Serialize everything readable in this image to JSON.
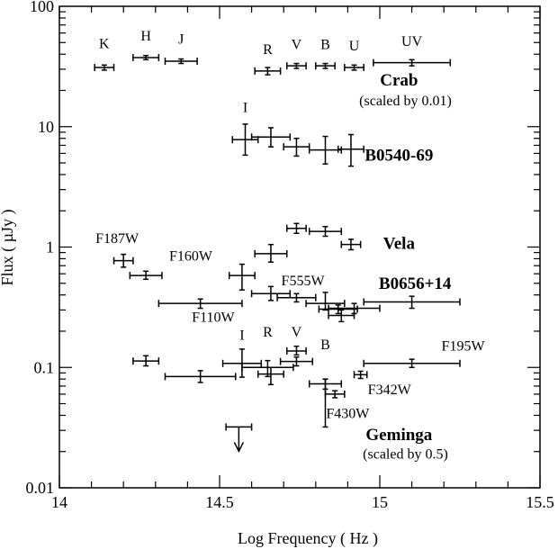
{
  "chart_data": {
    "type": "scatter",
    "xlabel": "Log Frequency ( Hz )",
    "ylabel": "Flux ( µJy )",
    "xlim": [
      14,
      15.5
    ],
    "ylim": [
      0.01,
      100
    ],
    "y_scale": "log",
    "x_ticks": [
      {
        "value": 14,
        "label": "14"
      },
      {
        "value": 14.5,
        "label": "14.5"
      },
      {
        "value": 15,
        "label": "15"
      },
      {
        "value": 15.5,
        "label": "15.5"
      }
    ],
    "y_ticks": [
      {
        "value": 0.01,
        "label": "0.01"
      },
      {
        "value": 0.1,
        "label": "0.1"
      },
      {
        "value": 1,
        "label": "1"
      },
      {
        "value": 10,
        "label": "10"
      },
      {
        "value": 100,
        "label": "100"
      }
    ],
    "series": [
      {
        "name": "Crab",
        "points": [
          {
            "x": 14.14,
            "y": 31,
            "xerr": 0.03,
            "ylo": 29.5,
            "yhi": 32.5
          },
          {
            "x": 14.27,
            "y": 37.5,
            "xerr": 0.04,
            "ylo": 36,
            "yhi": 39
          },
          {
            "x": 14.38,
            "y": 35,
            "xerr": 0.05,
            "ylo": 33.5,
            "yhi": 36.5
          },
          {
            "x": 14.65,
            "y": 29,
            "xerr": 0.04,
            "ylo": 27,
            "yhi": 31
          },
          {
            "x": 14.74,
            "y": 32,
            "xerr": 0.03,
            "ylo": 30.5,
            "yhi": 33.5
          },
          {
            "x": 14.83,
            "y": 32,
            "xerr": 0.03,
            "ylo": 30.5,
            "yhi": 33.5
          },
          {
            "x": 14.92,
            "y": 31,
            "xerr": 0.03,
            "ylo": 29.5,
            "yhi": 32.5
          },
          {
            "x": 15.1,
            "y": 34,
            "xerr": 0.12,
            "ylo": 32,
            "yhi": 36
          }
        ]
      },
      {
        "name": "B0540-69",
        "points": [
          {
            "x": 14.58,
            "y": 7.8,
            "xerr": 0.04,
            "ylo": 5.8,
            "yhi": 10.5
          },
          {
            "x": 14.66,
            "y": 8.2,
            "xerr": 0.06,
            "ylo": 6.8,
            "yhi": 9.8
          },
          {
            "x": 14.74,
            "y": 6.8,
            "xerr": 0.04,
            "ylo": 5.7,
            "yhi": 8.0
          },
          {
            "x": 14.83,
            "y": 6.4,
            "xerr": 0.05,
            "ylo": 4.9,
            "yhi": 8.3
          },
          {
            "x": 14.91,
            "y": 6.5,
            "xerr": 0.04,
            "ylo": 4.7,
            "yhi": 8.6
          }
        ]
      },
      {
        "name": "Vela",
        "points": [
          {
            "x": 14.2,
            "y": 0.77,
            "xerr": 0.03,
            "ylo": 0.68,
            "yhi": 0.87
          },
          {
            "x": 14.27,
            "y": 0.58,
            "xerr": 0.05,
            "ylo": 0.54,
            "yhi": 0.63
          },
          {
            "x": 14.44,
            "y": 0.34,
            "xerr": 0.13,
            "ylo": 0.31,
            "yhi": 0.37
          },
          {
            "x": 14.57,
            "y": 0.58,
            "xerr": 0.04,
            "ylo": 0.44,
            "yhi": 0.72
          },
          {
            "x": 14.66,
            "y": 0.88,
            "xerr": 0.05,
            "ylo": 0.75,
            "yhi": 1.05
          },
          {
            "x": 14.74,
            "y": 1.43,
            "xerr": 0.03,
            "ylo": 1.3,
            "yhi": 1.57
          },
          {
            "x": 14.83,
            "y": 1.35,
            "xerr": 0.05,
            "ylo": 1.23,
            "yhi": 1.48
          },
          {
            "x": 14.91,
            "y": 1.05,
            "xerr": 0.03,
            "ylo": 0.95,
            "yhi": 1.16
          }
        ]
      },
      {
        "name": "B0656+14",
        "points": [
          {
            "x": 14.66,
            "y": 0.41,
            "xerr": 0.06,
            "ylo": 0.36,
            "yhi": 0.47
          },
          {
            "x": 14.74,
            "y": 0.38,
            "xerr": 0.06,
            "ylo": 0.35,
            "yhi": 0.41
          },
          {
            "x": 14.83,
            "y": 0.34,
            "xerr": 0.06,
            "ylo": 0.3,
            "yhi": 0.42
          },
          {
            "x": 14.88,
            "y": 0.27,
            "xerr": 0.04,
            "ylo": 0.24,
            "yhi": 0.3
          },
          {
            "x": 14.92,
            "y": 0.31,
            "xerr": 0.08,
            "ylo": 0.28,
            "yhi": 0.34
          },
          {
            "x": 14.87,
            "y": 0.305,
            "xerr": 0.06,
            "ylo": 0.28,
            "yhi": 0.33
          },
          {
            "x": 15.1,
            "y": 0.35,
            "xerr": 0.15,
            "ylo": 0.31,
            "yhi": 0.39
          }
        ]
      },
      {
        "name": "Geminga",
        "points": [
          {
            "x": 14.27,
            "y": 0.113,
            "xerr": 0.04,
            "ylo": 0.103,
            "yhi": 0.125
          },
          {
            "x": 14.44,
            "y": 0.084,
            "xerr": 0.11,
            "ylo": 0.075,
            "yhi": 0.094
          },
          {
            "x": 14.57,
            "y": 0.108,
            "xerr": 0.06,
            "ylo": 0.083,
            "yhi": 0.142
          },
          {
            "x": 14.65,
            "y": 0.1,
            "xerr": 0.08,
            "ylo": 0.084,
            "yhi": 0.114
          },
          {
            "x": 14.66,
            "y": 0.088,
            "xerr": 0.04,
            "ylo": 0.072,
            "yhi": 0.1
          },
          {
            "x": 14.74,
            "y": 0.112,
            "xerr": 0.05,
            "ylo": 0.103,
            "yhi": 0.122
          },
          {
            "x": 14.74,
            "y": 0.137,
            "xerr": 0.03,
            "ylo": 0.127,
            "yhi": 0.15
          },
          {
            "x": 14.83,
            "y": 0.073,
            "xerr": 0.05,
            "ylo": 0.066,
            "yhi": 0.08
          },
          {
            "x": 14.83,
            "y": 0.06,
            "xerr": 0.0,
            "ylo": 0.032,
            "yhi": 0.08
          },
          {
            "x": 14.86,
            "y": 0.06,
            "xerr": 0.03,
            "ylo": 0.056,
            "yhi": 0.064
          },
          {
            "x": 14.94,
            "y": 0.087,
            "xerr": 0.02,
            "ylo": 0.081,
            "yhi": 0.093
          },
          {
            "x": 15.1,
            "y": 0.108,
            "xerr": 0.15,
            "ylo": 0.1,
            "yhi": 0.117
          },
          {
            "x": 14.56,
            "y": 0.032,
            "xerr": 0.04,
            "upper_limit": true
          }
        ]
      }
    ],
    "annotations": [
      {
        "text": "K",
        "x": 14.14,
        "y": 45,
        "kind": "band"
      },
      {
        "text": "H",
        "x": 14.27,
        "y": 52,
        "kind": "band"
      },
      {
        "text": "J",
        "x": 14.38,
        "y": 49,
        "kind": "band"
      },
      {
        "text": "R",
        "x": 14.65,
        "y": 40,
        "kind": "band"
      },
      {
        "text": "V",
        "x": 14.74,
        "y": 44,
        "kind": "band"
      },
      {
        "text": "B",
        "x": 14.83,
        "y": 44,
        "kind": "band"
      },
      {
        "text": "U",
        "x": 14.92,
        "y": 43,
        "kind": "band"
      },
      {
        "text": "UV",
        "x": 15.1,
        "y": 47,
        "kind": "band"
      },
      {
        "text": "Crab",
        "x": 15.06,
        "y": 22,
        "kind": "source"
      },
      {
        "text": "(scaled by 0.01)",
        "x": 15.08,
        "y": 15,
        "kind": "note"
      },
      {
        "text": "I",
        "x": 14.58,
        "y": 13.2,
        "kind": "band"
      },
      {
        "text": "B0540-69",
        "x": 15.06,
        "y": 5.2,
        "kind": "source"
      },
      {
        "text": "F187W",
        "x": 14.18,
        "y": 1.08,
        "kind": "band"
      },
      {
        "text": "Vela",
        "x": 15.06,
        "y": 0.97,
        "kind": "source"
      },
      {
        "text": "F160W",
        "x": 14.41,
        "y": 0.77,
        "kind": "band"
      },
      {
        "text": "F555W",
        "x": 14.76,
        "y": 0.48,
        "kind": "band"
      },
      {
        "text": "B0656+14",
        "x": 15.11,
        "y": 0.45,
        "kind": "source"
      },
      {
        "text": "F110W",
        "x": 14.48,
        "y": 0.24,
        "kind": "band"
      },
      {
        "text": "I",
        "x": 14.57,
        "y": 0.17,
        "kind": "band"
      },
      {
        "text": "R",
        "x": 14.65,
        "y": 0.18,
        "kind": "band"
      },
      {
        "text": "V",
        "x": 14.74,
        "y": 0.18,
        "kind": "band"
      },
      {
        "text": "B",
        "x": 14.83,
        "y": 0.142,
        "kind": "band"
      },
      {
        "text": "F195W",
        "x": 15.26,
        "y": 0.138,
        "kind": "band"
      },
      {
        "text": "F342W",
        "x": 15.03,
        "y": 0.06,
        "kind": "band"
      },
      {
        "text": "F430W",
        "x": 14.9,
        "y": 0.038,
        "kind": "band"
      },
      {
        "text": "Geminga",
        "x": 15.06,
        "y": 0.025,
        "kind": "source"
      },
      {
        "text": "(scaled by 0.5)",
        "x": 15.08,
        "y": 0.0175,
        "kind": "note"
      }
    ],
    "grid": false,
    "legend": "none"
  }
}
